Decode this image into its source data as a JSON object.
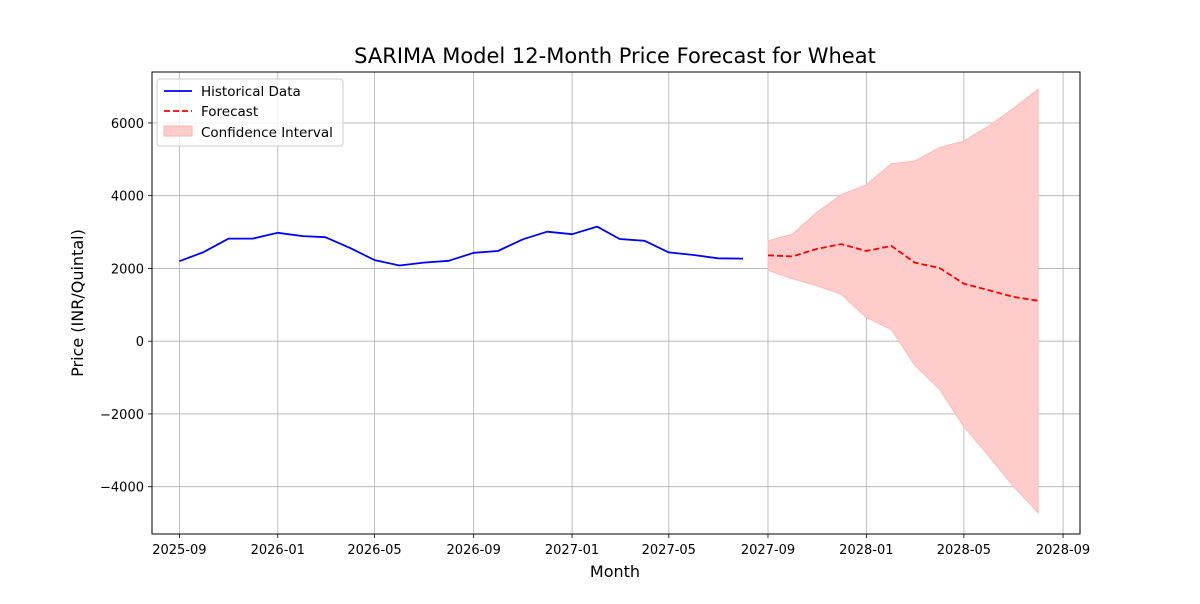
{
  "chart_data": {
    "type": "line",
    "title": "SARIMA Model 12-Month Price Forecast for Wheat",
    "xlabel": "Month",
    "ylabel": "Price (INR/Quintal)",
    "xlim": [
      "2025-07-29",
      "2028-09-22"
    ],
    "ylim": [
      -5300,
      7400
    ],
    "grid": true,
    "legend_position": "top-left",
    "x_ticks": [
      "2025-09",
      "2026-01",
      "2026-05",
      "2026-09",
      "2027-01",
      "2027-05",
      "2027-09",
      "2028-01",
      "2028-05",
      "2028-09"
    ],
    "y_ticks": [
      -4000,
      -2000,
      0,
      2000,
      4000,
      6000
    ],
    "y_tick_labels": [
      "−4000",
      "−2000",
      "0",
      "2000",
      "4000",
      "6000"
    ],
    "series": [
      {
        "name": "Historical Data",
        "style": "solid",
        "color": "#0000ff",
        "x": [
          "2025-09-01",
          "2025-10-01",
          "2025-11-01",
          "2025-12-01",
          "2026-01-01",
          "2026-02-01",
          "2026-03-01",
          "2026-04-01",
          "2026-05-01",
          "2026-06-01",
          "2026-07-01",
          "2026-08-01",
          "2026-09-01",
          "2026-10-01",
          "2026-11-01",
          "2026-12-01",
          "2027-01-01",
          "2027-02-01",
          "2027-03-01",
          "2027-04-01",
          "2027-05-01",
          "2027-06-01",
          "2027-07-01",
          "2027-08-01"
        ],
        "values": [
          2200,
          2450,
          2820,
          2820,
          2980,
          2890,
          2860,
          2560,
          2230,
          2080,
          2160,
          2210,
          2430,
          2480,
          2800,
          3010,
          2940,
          3150,
          2810,
          2760,
          2440,
          2370,
          2280,
          2270
        ]
      },
      {
        "name": "Forecast",
        "style": "dashed",
        "color": "#ff0000",
        "x": [
          "2027-09-01",
          "2027-10-01",
          "2027-11-01",
          "2027-12-01",
          "2028-01-01",
          "2028-02-01",
          "2028-03-01",
          "2028-04-01",
          "2028-05-01",
          "2028-06-01",
          "2028-07-01",
          "2028-08-01"
        ],
        "values": [
          2360,
          2330,
          2540,
          2670,
          2480,
          2620,
          2160,
          2010,
          1580,
          1400,
          1220,
          1110
        ]
      }
    ],
    "confidence_interval": {
      "name": "Confidence Interval",
      "color": "#ffcccc",
      "x": [
        "2027-09-01",
        "2027-10-01",
        "2027-11-01",
        "2027-12-01",
        "2028-01-01",
        "2028-02-01",
        "2028-03-01",
        "2028-04-01",
        "2028-05-01",
        "2028-06-01",
        "2028-07-01",
        "2028-08-01"
      ],
      "lower": [
        1950,
        1720,
        1520,
        1290,
        650,
        320,
        -660,
        -1330,
        -2350,
        -3160,
        -3980,
        -4720
      ],
      "upper": [
        2760,
        2940,
        3550,
        4030,
        4300,
        4880,
        4950,
        5330,
        5500,
        5920,
        6390,
        6930
      ]
    }
  }
}
